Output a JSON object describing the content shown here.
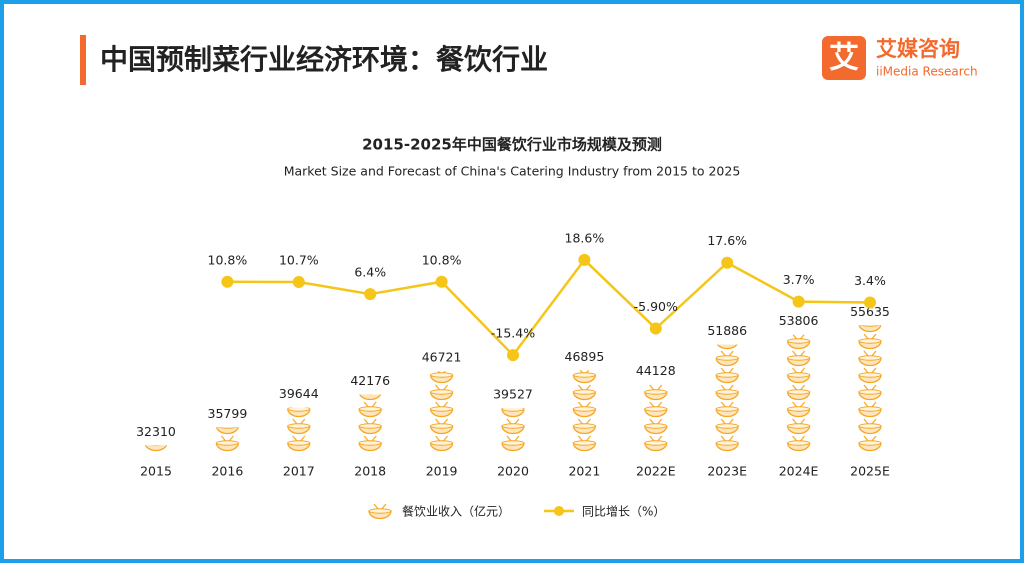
{
  "header": {
    "title": "中国预制菜行业经济环境：餐饮行业",
    "logo_mark": "艾",
    "logo_name": "艾媒咨询",
    "logo_sub": "iiMedia Research"
  },
  "chart_data": {
    "type": "bar-line",
    "title": "2015-2025年中国餐饮行业市场规模及预测",
    "subtitle": "Market Size and Forecast of China's Catering Industry from 2015 to 2025",
    "categories": [
      "2015",
      "2016",
      "2017",
      "2018",
      "2019",
      "2020",
      "2021",
      "2022E",
      "2023E",
      "2024E",
      "2025E"
    ],
    "ylim": [
      31000,
      80000
    ],
    "y2lim": [
      -50,
      40
    ],
    "series": [
      {
        "name": "餐饮业收入（亿元）",
        "type": "bar",
        "color": "#f5a623",
        "values": [
          32310,
          35799,
          39644,
          42176,
          46721,
          39527,
          46895,
          44128,
          51886,
          53806,
          55635
        ]
      },
      {
        "name": "同比增长（%）",
        "type": "line",
        "axis": "y2",
        "color": "#f5c518",
        "values": [
          null,
          10.8,
          10.7,
          6.4,
          10.8,
          -15.4,
          18.6,
          -5.9,
          17.6,
          3.7,
          3.4
        ],
        "value_labels": [
          null,
          "10.8%",
          "10.7%",
          "6.4%",
          "10.8%",
          "-15.4%",
          "18.6%",
          "-5.90%",
          "17.6%",
          "3.7%",
          "3.4%"
        ]
      }
    ]
  }
}
